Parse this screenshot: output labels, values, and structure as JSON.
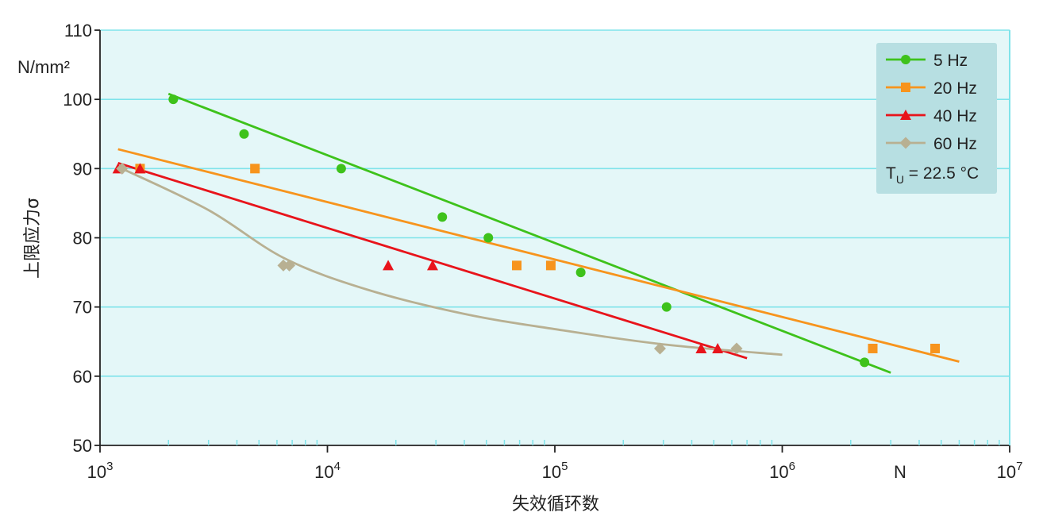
{
  "chart_data": {
    "type": "scatter",
    "title": "",
    "xlabel": "失效循环数",
    "x_unit": "N",
    "ylabel": "上限应力σ",
    "y_unit": "N/mm²",
    "xscale": "log",
    "xlim": [
      1000,
      10000000
    ],
    "ylim": [
      50,
      110
    ],
    "x_ticks": [
      1000,
      10000,
      100000,
      1000000,
      10000000
    ],
    "x_tick_labels": [
      {
        "base": "10",
        "exp": "3"
      },
      {
        "base": "10",
        "exp": "4"
      },
      {
        "base": "10",
        "exp": "5"
      },
      {
        "base": "10",
        "exp": "6"
      },
      {
        "base": "10",
        "exp": "7"
      }
    ],
    "y_ticks": [
      50,
      60,
      70,
      80,
      90,
      100,
      110
    ],
    "y_tick_labels": [
      "50",
      "60",
      "70",
      "80",
      "90",
      "100",
      "110"
    ],
    "grid": true,
    "legend_position": "top-right",
    "annotation": {
      "symbol": "T",
      "subscript": "U",
      "text": " = 22.5 °C"
    },
    "series": [
      {
        "name": "5 Hz",
        "color": "#3ec21b",
        "marker": "circle",
        "points": [
          [
            2100,
            100
          ],
          [
            4300,
            95
          ],
          [
            11500,
            90
          ],
          [
            32000,
            83
          ],
          [
            51000,
            80
          ],
          [
            130000,
            75
          ],
          [
            310000,
            70
          ],
          [
            2300000,
            62
          ]
        ],
        "fit": [
          [
            2000,
            100.8
          ],
          [
            3000000,
            60.5
          ]
        ],
        "fit_shape": "line"
      },
      {
        "name": "20 Hz",
        "color": "#f7941d",
        "marker": "square",
        "points": [
          [
            1500,
            90
          ],
          [
            4800,
            90
          ],
          [
            68000,
            76
          ],
          [
            96000,
            76
          ],
          [
            2500000,
            64
          ],
          [
            4700000,
            64
          ]
        ],
        "fit": [
          [
            1200,
            92.8
          ],
          [
            6000000,
            62.1
          ]
        ],
        "fit_shape": "line"
      },
      {
        "name": "40 Hz",
        "color": "#e8141b",
        "marker": "triangle",
        "points": [
          [
            1200,
            90
          ],
          [
            1500,
            90
          ],
          [
            18500,
            76
          ],
          [
            29000,
            76
          ],
          [
            440000,
            64
          ],
          [
            520000,
            64
          ]
        ],
        "fit": [
          [
            1200,
            90.8
          ],
          [
            700000,
            62.6
          ]
        ],
        "fit_shape": "line"
      },
      {
        "name": "60 Hz",
        "color": "#b8b092",
        "marker": "diamond",
        "points": [
          [
            1250,
            90
          ],
          [
            6400,
            76
          ],
          [
            6800,
            76
          ],
          [
            290000,
            64
          ],
          [
            630000,
            64
          ]
        ],
        "fit": [
          [
            1250,
            90
          ],
          [
            3000,
            84
          ],
          [
            6500,
            77
          ],
          [
            15000,
            72.5
          ],
          [
            40000,
            69
          ],
          [
            100000,
            66.8
          ],
          [
            300000,
            64.6
          ],
          [
            1000000,
            63.1
          ]
        ],
        "fit_shape": "curve"
      }
    ]
  }
}
